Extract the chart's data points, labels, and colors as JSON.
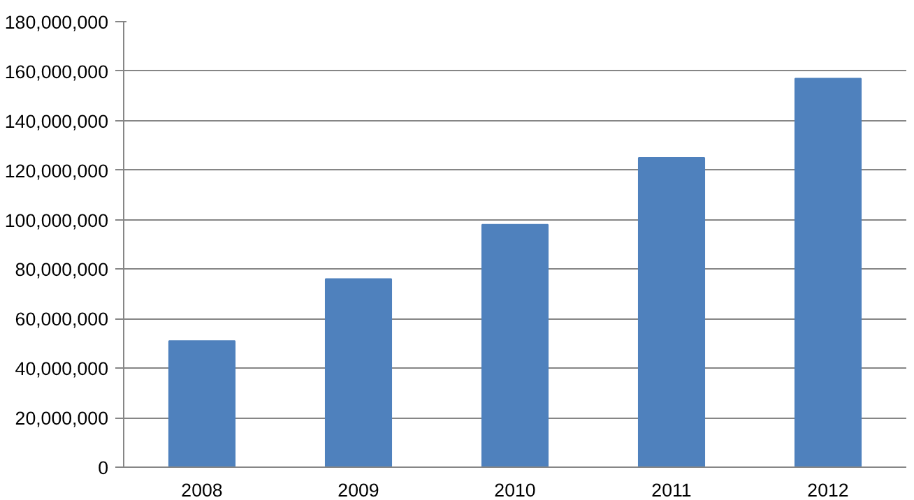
{
  "chart_data": {
    "type": "bar",
    "categories": [
      "2008",
      "2009",
      "2010",
      "2011",
      "2012"
    ],
    "values": [
      51000000,
      76000000,
      98000000,
      125000000,
      157000000
    ],
    "color": "#4f81bd",
    "ylim": [
      0,
      180000000
    ],
    "yticks": [
      {
        "value": 0,
        "label": "0"
      },
      {
        "value": 20000000,
        "label": "20,000,000"
      },
      {
        "value": 40000000,
        "label": "40,000,000"
      },
      {
        "value": 60000000,
        "label": "60,000,000"
      },
      {
        "value": 80000000,
        "label": "80,000,000"
      },
      {
        "value": 100000000,
        "label": "100,000,000"
      },
      {
        "value": 120000000,
        "label": "120,000,000"
      },
      {
        "value": 140000000,
        "label": "140,000,000"
      },
      {
        "value": 160000000,
        "label": "160,000,000"
      },
      {
        "value": 180000000,
        "label": "180,000,000"
      }
    ],
    "grid": "y"
  }
}
